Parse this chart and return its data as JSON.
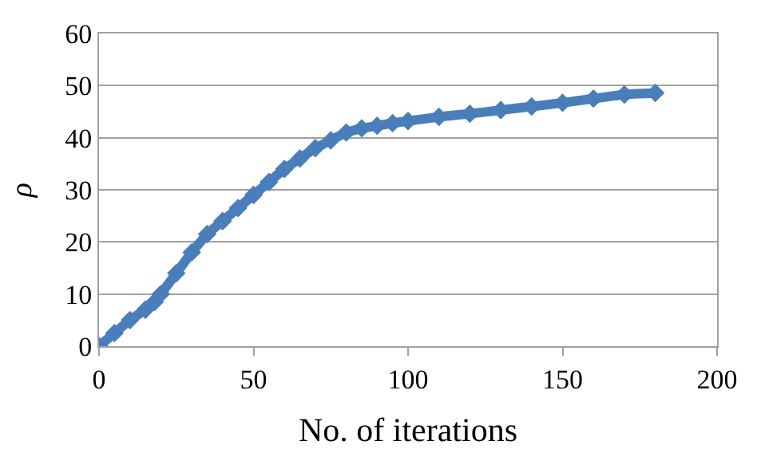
{
  "chart_data": {
    "type": "line",
    "xlabel": "No. of iterations",
    "ylabel": "ρ",
    "series": [
      {
        "color": "#4a7ebb",
        "x": [
          0,
          5,
          10,
          15,
          18,
          20,
          25,
          30,
          35,
          40,
          45,
          50,
          55,
          60,
          65,
          70,
          75,
          80,
          85,
          90,
          95,
          100,
          110,
          120,
          130,
          140,
          150,
          160,
          170,
          180
        ],
        "values": [
          0,
          2.5,
          5,
          7,
          8.5,
          10,
          14,
          18,
          21.5,
          24,
          26.5,
          29,
          31.5,
          34,
          36,
          38,
          39.5,
          41,
          41.8,
          42.3,
          42.8,
          43.2,
          44,
          44.6,
          45.3,
          46,
          46.7,
          47.5,
          48.3,
          48.6
        ]
      }
    ],
    "xlim": [
      0,
      200
    ],
    "xticks": [
      0,
      50,
      100,
      150,
      200
    ],
    "ylim": [
      0,
      60
    ],
    "yticks": [
      0,
      10,
      20,
      30,
      40,
      50,
      60
    ],
    "grid": "y",
    "marker": "diamond",
    "line_style": "solid"
  }
}
